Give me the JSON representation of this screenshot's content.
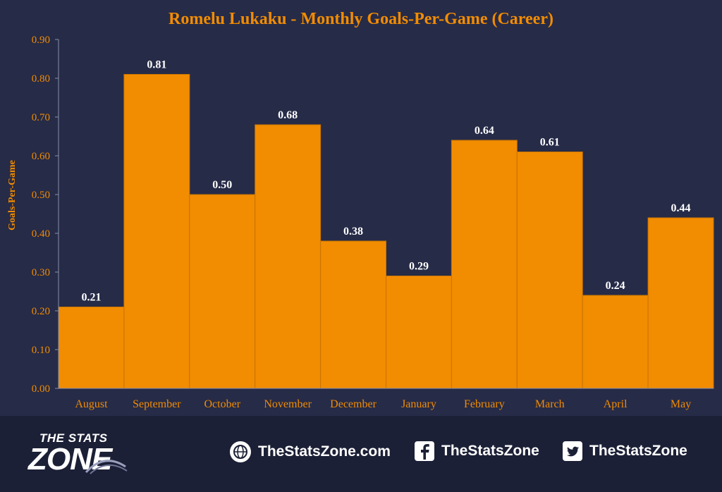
{
  "chart_data": {
    "type": "bar",
    "title": "Romelu Lukaku - Monthly Goals-Per-Game (Career)",
    "xlabel": "",
    "ylabel": "Goals-Per-Game",
    "categories": [
      "August",
      "September",
      "October",
      "November",
      "December",
      "January",
      "February",
      "March",
      "April",
      "May"
    ],
    "values": [
      0.21,
      0.81,
      0.5,
      0.68,
      0.38,
      0.29,
      0.64,
      0.61,
      0.24,
      0.44
    ],
    "value_labels": [
      "0.21",
      "0.81",
      "0.50",
      "0.68",
      "0.38",
      "0.29",
      "0.64",
      "0.61",
      "0.24",
      "0.44"
    ],
    "ylim": [
      0,
      0.9
    ],
    "yticks": [
      "0.00",
      "0.10",
      "0.20",
      "0.30",
      "0.40",
      "0.50",
      "0.60",
      "0.70",
      "0.80",
      "0.90"
    ],
    "grid": false,
    "colors": {
      "bar": "#f28c00",
      "bar_edge": "#c77400",
      "text_accent": "#f28c00",
      "axis": "#8a8fa8",
      "label": "#ffffff"
    }
  },
  "footer": {
    "logo_top": "THE STATS",
    "logo_bottom": "ZONE",
    "website": "TheStatsZone.com",
    "facebook": "TheStatsZone",
    "twitter": "TheStatsZone",
    "website_icon": "globe-icon",
    "facebook_icon": "facebook-icon",
    "twitter_icon": "twitter-icon"
  }
}
